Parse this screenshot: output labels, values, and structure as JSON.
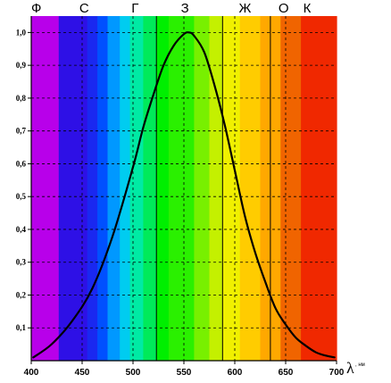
{
  "chart_data": {
    "type": "line",
    "xlabel": "λ, нм",
    "xlabel_symbol": "λ",
    "xlabel_unit": ", нм",
    "ylabel": "",
    "xlim": [
      400,
      700
    ],
    "ylim": [
      0,
      1.05
    ],
    "xticks": [
      400,
      450,
      500,
      550,
      600,
      650,
      700
    ],
    "yticks": [
      0.1,
      0.2,
      0.3,
      0.4,
      0.5,
      0.6,
      0.7,
      0.8,
      0.9,
      1.0
    ],
    "ytick_labels": [
      "0,1",
      "0,2",
      "0,3",
      "0,4",
      "0,5",
      "0,6",
      "0,7",
      "0,8",
      "0,9",
      "1,0"
    ],
    "grid": true,
    "color_bands": [
      {
        "from": 400,
        "to": 427,
        "color": "#b800ea"
      },
      {
        "from": 427,
        "to": 455,
        "color": "#2e10e6"
      },
      {
        "from": 455,
        "to": 465,
        "color": "#1a28f0"
      },
      {
        "from": 465,
        "to": 475,
        "color": "#0050ff"
      },
      {
        "from": 475,
        "to": 487,
        "color": "#0098ff"
      },
      {
        "from": 487,
        "to": 497,
        "color": "#00ccf0"
      },
      {
        "from": 497,
        "to": 510,
        "color": "#00eaa4"
      },
      {
        "from": 510,
        "to": 523,
        "color": "#00ea5a"
      },
      {
        "from": 523,
        "to": 535,
        "color": "#00ef00"
      },
      {
        "from": 535,
        "to": 560,
        "color": "#2af000"
      },
      {
        "from": 560,
        "to": 575,
        "color": "#78f000"
      },
      {
        "from": 575,
        "to": 588,
        "color": "#c4f000"
      },
      {
        "from": 588,
        "to": 605,
        "color": "#f0f000"
      },
      {
        "from": 605,
        "to": 625,
        "color": "#ffcc00"
      },
      {
        "from": 625,
        "to": 645,
        "color": "#ffa800"
      },
      {
        "from": 645,
        "to": 665,
        "color": "#f06400"
      },
      {
        "from": 665,
        "to": 700,
        "color": "#f02800"
      }
    ],
    "band_boundaries": [
      523,
      588,
      635
    ],
    "band_labels": [
      {
        "label": "Ф",
        "at": 405
      },
      {
        "label": "С",
        "at": 452
      },
      {
        "label": "Г",
        "at": 502
      },
      {
        "label": "З",
        "at": 551
      },
      {
        "label": "Ж",
        "at": 610
      },
      {
        "label": "О",
        "at": 648
      },
      {
        "label": "К",
        "at": 671
      }
    ],
    "series": [
      {
        "x": [
          402,
          420,
          440,
          460,
          480,
          500,
          510,
          520,
          530,
          540,
          550,
          555,
          560,
          570,
          580,
          590,
          600,
          610,
          620,
          630,
          640,
          650,
          660,
          670,
          680,
          690,
          698
        ],
        "values": [
          0.01,
          0.05,
          0.12,
          0.22,
          0.38,
          0.59,
          0.71,
          0.81,
          0.9,
          0.96,
          0.995,
          1.0,
          0.99,
          0.94,
          0.84,
          0.72,
          0.58,
          0.44,
          0.33,
          0.24,
          0.16,
          0.11,
          0.07,
          0.045,
          0.025,
          0.015,
          0.01
        ],
        "color": "#000000"
      }
    ]
  }
}
